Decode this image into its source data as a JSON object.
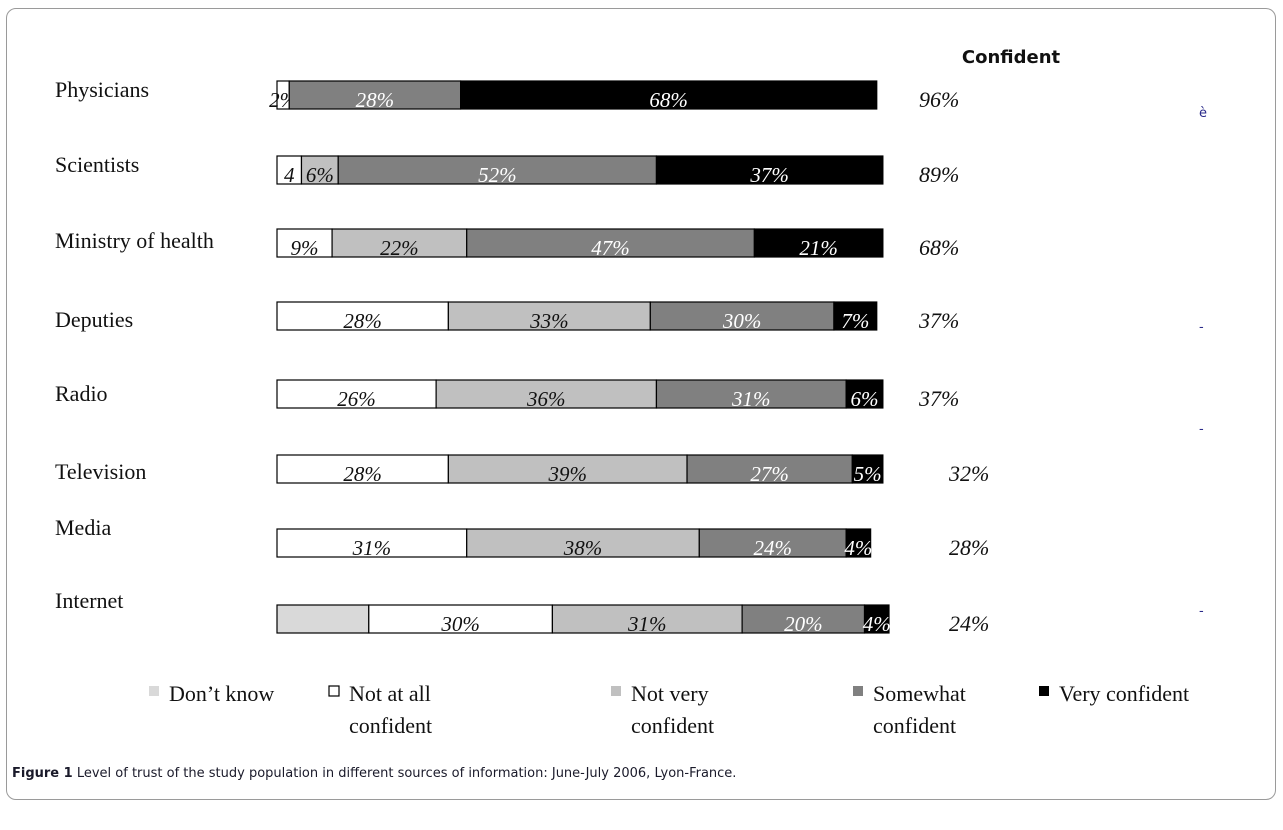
{
  "chart_data": {
    "type": "bar",
    "stacked": true,
    "orientation": "horizontal",
    "column_header": "Confident",
    "categories": [
      "Physicians",
      "Scientists",
      "Ministry of health",
      "Deputies",
      "Radio",
      "Television",
      "Media",
      "Internet"
    ],
    "series": [
      {
        "name": "Don’t know",
        "color": "#d9d9d9",
        "values": [
          0,
          0,
          0,
          0,
          0,
          0,
          0,
          15
        ],
        "labels": [
          "",
          "",
          "",
          "",
          "",
          "",
          "",
          ""
        ]
      },
      {
        "name": "Not at all confident",
        "color": "#ffffff",
        "values": [
          2,
          4,
          9,
          28,
          26,
          28,
          31,
          30
        ],
        "labels": [
          "2%",
          "4",
          "9%",
          "28%",
          "26%",
          "28%",
          "31%",
          "30%"
        ]
      },
      {
        "name": "Not very confident",
        "color": "#c0c0c0",
        "values": [
          0,
          6,
          22,
          33,
          36,
          39,
          38,
          31
        ],
        "labels": [
          "",
          "6%",
          "22%",
          "33%",
          "36%",
          "39%",
          "38%",
          "31%"
        ]
      },
      {
        "name": "Somewhat confident",
        "color": "#808080",
        "values": [
          28,
          52,
          47,
          30,
          31,
          27,
          24,
          20
        ],
        "labels": [
          "28%",
          "52%",
          "47%",
          "30%",
          "31%",
          "27%",
          "24%",
          "20%"
        ]
      },
      {
        "name": "Very confident",
        "color": "#000000",
        "values": [
          68,
          37,
          21,
          7,
          6,
          5,
          4,
          4
        ],
        "labels": [
          "68%",
          "37%",
          "21%",
          "7%",
          "6%",
          "5%",
          "4%",
          "4%"
        ]
      }
    ],
    "confident_totals": [
      "96%",
      "89%",
      "68%",
      "37%",
      "37%",
      "32%",
      "28%",
      "24%"
    ],
    "legend_labels": [
      [
        "Don’t know"
      ],
      [
        "Not at all",
        "confident"
      ],
      [
        "Not very",
        "confident"
      ],
      [
        "Somewhat",
        "confident"
      ],
      [
        "Very confident"
      ]
    ],
    "legend_position": "bottom",
    "stray_marks": [
      "è",
      "-",
      "-",
      "-"
    ],
    "grid": false
  },
  "caption": {
    "label": "Figure 1",
    "text": " Level of trust of the study population in different sources of information: June-July 2006, Lyon-France."
  }
}
